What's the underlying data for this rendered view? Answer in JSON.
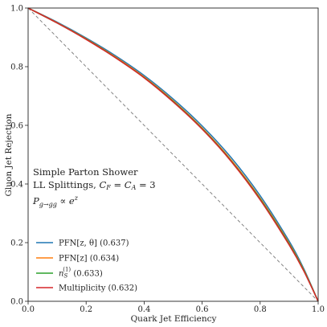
{
  "chart_data": {
    "type": "line",
    "xlabel": "Quark Jet Efficiency",
    "ylabel": "Gluon Jet Rejection",
    "xlim": [
      0.0,
      1.0
    ],
    "ylim": [
      0.0,
      1.0
    ],
    "xticks": [
      "0.0",
      "0.2",
      "0.4",
      "0.6",
      "0.8",
      "1.0"
    ],
    "yticks": [
      "0.0",
      "0.2",
      "0.4",
      "0.6",
      "0.8",
      "1.0"
    ],
    "grid": false,
    "legend_position": "lower-left",
    "annotations": [
      "Simple Parton Shower",
      "LL Splittings, C_F = C_A = 3",
      "P_{g→gg} ∝ e^z"
    ],
    "reference_line": {
      "style": "dashed",
      "color": "#777777",
      "x": [
        0,
        1
      ],
      "y": [
        1,
        0
      ]
    },
    "series": [
      {
        "name": "PFN[z, θ] (0.637)",
        "color": "#1f77b4",
        "x": [
          0,
          0.1,
          0.2,
          0.3,
          0.4,
          0.5,
          0.6,
          0.7,
          0.8,
          0.9,
          0.95,
          1.0
        ],
        "y": [
          1.0,
          0.952,
          0.898,
          0.838,
          0.77,
          0.69,
          0.598,
          0.49,
          0.36,
          0.205,
          0.112,
          0.0
        ]
      },
      {
        "name": "PFN[z] (0.634)",
        "color": "#ff7f0e",
        "x": [
          0,
          0.1,
          0.2,
          0.3,
          0.4,
          0.5,
          0.6,
          0.7,
          0.8,
          0.9,
          0.95,
          1.0
        ],
        "y": [
          1.0,
          0.95,
          0.895,
          0.834,
          0.765,
          0.684,
          0.591,
          0.482,
          0.352,
          0.198,
          0.108,
          0.0
        ]
      },
      {
        "name": "n_S^(1) (0.633)",
        "color": "#2ca02c",
        "x": [
          0,
          0.1,
          0.2,
          0.3,
          0.4,
          0.5,
          0.6,
          0.7,
          0.8,
          0.9,
          0.95,
          1.0
        ],
        "y": [
          1.0,
          0.949,
          0.894,
          0.832,
          0.763,
          0.682,
          0.589,
          0.479,
          0.349,
          0.195,
          0.106,
          0.0
        ]
      },
      {
        "name": "Multiplicity (0.632)",
        "color": "#d62728",
        "x": [
          0,
          0.1,
          0.2,
          0.3,
          0.4,
          0.5,
          0.6,
          0.7,
          0.8,
          0.9,
          0.95,
          1.0
        ],
        "y": [
          1.0,
          0.949,
          0.893,
          0.831,
          0.762,
          0.68,
          0.587,
          0.477,
          0.346,
          0.192,
          0.104,
          0.0
        ]
      }
    ],
    "legend": [
      {
        "label_main": "PFN[z, θ]",
        "label_score": "(0.637)"
      },
      {
        "label_main": "PFN[z]",
        "label_score": "(0.634)"
      },
      {
        "label_main": "n",
        "label_sub": "S",
        "label_sup": "(1)",
        "label_score": "(0.633)"
      },
      {
        "label_main": "Multiplicity",
        "label_score": "(0.632)"
      }
    ]
  }
}
